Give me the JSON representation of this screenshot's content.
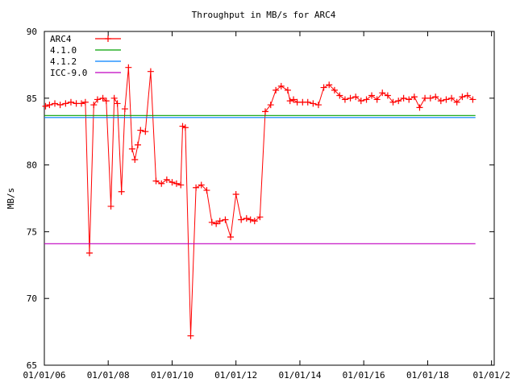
{
  "chart_data": {
    "type": "line",
    "title": "Throughput in MB/s for ARC4",
    "xlabel": "",
    "ylabel": "MB/s",
    "xlim": [
      "2006-01-01",
      "2020-02-01"
    ],
    "ylim": [
      65,
      90
    ],
    "x_ticks": [
      "01/01/06",
      "01/01/08",
      "01/01/10",
      "01/01/12",
      "01/01/14",
      "01/01/16",
      "01/01/18",
      "01/01/2"
    ],
    "x_tick_dates": [
      "2006-01-01",
      "2008-01-01",
      "2010-01-01",
      "2012-01-01",
      "2014-01-01",
      "2016-01-01",
      "2018-01-01",
      "2020-01-01"
    ],
    "y_ticks": [
      65,
      70,
      75,
      80,
      85,
      90
    ],
    "grid": false,
    "legend_position": "top-left",
    "series": [
      {
        "name": "ARC4",
        "color": "#ff0000",
        "marker": "plus",
        "x": [
          "2006-01-15",
          "2006-03-01",
          "2006-05-01",
          "2006-07-01",
          "2006-09-01",
          "2006-11-01",
          "2007-01-01",
          "2007-03-01",
          "2007-04-15",
          "2007-06-01",
          "2007-07-20",
          "2007-09-01",
          "2007-11-01",
          "2007-12-10",
          "2008-02-01",
          "2008-03-10",
          "2008-04-15",
          "2008-06-01",
          "2008-07-10",
          "2008-08-20",
          "2008-10-01",
          "2008-11-01",
          "2008-12-05",
          "2009-01-05",
          "2009-03-01",
          "2009-05-01",
          "2009-07-01",
          "2009-09-01",
          "2009-11-01",
          "2010-01-01",
          "2010-02-20",
          "2010-04-10",
          "2010-05-01",
          "2010-06-01",
          "2010-08-01",
          "2010-10-01",
          "2010-12-01",
          "2011-02-01",
          "2011-04-01",
          "2011-05-20",
          "2011-07-01",
          "2011-09-01",
          "2011-11-01",
          "2012-01-01",
          "2012-03-01",
          "2012-05-01",
          "2012-06-15",
          "2012-08-01",
          "2012-10-01",
          "2012-12-01",
          "2013-02-01",
          "2013-04-01",
          "2013-06-01",
          "2013-08-15",
          "2013-09-10",
          "2013-10-20",
          "2013-12-01",
          "2014-02-01",
          "2014-04-01",
          "2014-06-01",
          "2014-08-01",
          "2014-10-01",
          "2014-12-01",
          "2015-02-01",
          "2015-04-01",
          "2015-06-01",
          "2015-08-01",
          "2015-10-01",
          "2015-12-01",
          "2016-02-01",
          "2016-04-01",
          "2016-06-01",
          "2016-08-01",
          "2016-10-01",
          "2016-12-01",
          "2017-02-01",
          "2017-04-01",
          "2017-06-01",
          "2017-08-01",
          "2017-10-01",
          "2017-12-01",
          "2018-02-01",
          "2018-04-01",
          "2018-06-01",
          "2018-08-01",
          "2018-10-01",
          "2018-12-01",
          "2019-02-01",
          "2019-04-01",
          "2019-06-01"
        ],
        "values": [
          84.4,
          84.5,
          84.6,
          84.5,
          84.6,
          84.7,
          84.6,
          84.6,
          84.7,
          73.4,
          84.5,
          84.9,
          85.0,
          84.8,
          76.9,
          85.0,
          84.6,
          78.0,
          84.2,
          87.3,
          81.2,
          80.4,
          81.5,
          82.6,
          82.5,
          87.0,
          78.8,
          78.6,
          78.9,
          78.7,
          78.6,
          78.5,
          82.9,
          82.8,
          67.2,
          78.3,
          78.5,
          78.1,
          75.7,
          75.6,
          75.8,
          75.9,
          74.6,
          77.8,
          75.9,
          76.0,
          75.9,
          75.8,
          76.1,
          84.0,
          84.5,
          85.6,
          85.9,
          85.6,
          84.8,
          84.9,
          84.7,
          84.7,
          84.7,
          84.6,
          84.5,
          85.8,
          86.0,
          85.6,
          85.2,
          84.9,
          85.0,
          85.1,
          84.8,
          84.9,
          85.2,
          84.9,
          85.4,
          85.2,
          84.7,
          84.8,
          85.0,
          84.9,
          85.1,
          84.3,
          85.0,
          85.0,
          85.1,
          84.8,
          84.9,
          85.0,
          84.7,
          85.1,
          85.2,
          84.9
        ]
      },
      {
        "name": "4.1.0",
        "color": "#00a000",
        "x": [
          "2006-01-01",
          "2019-07-01"
        ],
        "values": [
          83.7,
          83.7
        ]
      },
      {
        "name": "4.1.2",
        "color": "#0080ff",
        "x": [
          "2006-01-01",
          "2019-07-01"
        ],
        "values": [
          83.55,
          83.55
        ]
      },
      {
        "name": "ICC-9.0",
        "color": "#c000c0",
        "x": [
          "2006-01-01",
          "2019-07-01"
        ],
        "values": [
          74.1,
          74.1
        ]
      }
    ]
  }
}
